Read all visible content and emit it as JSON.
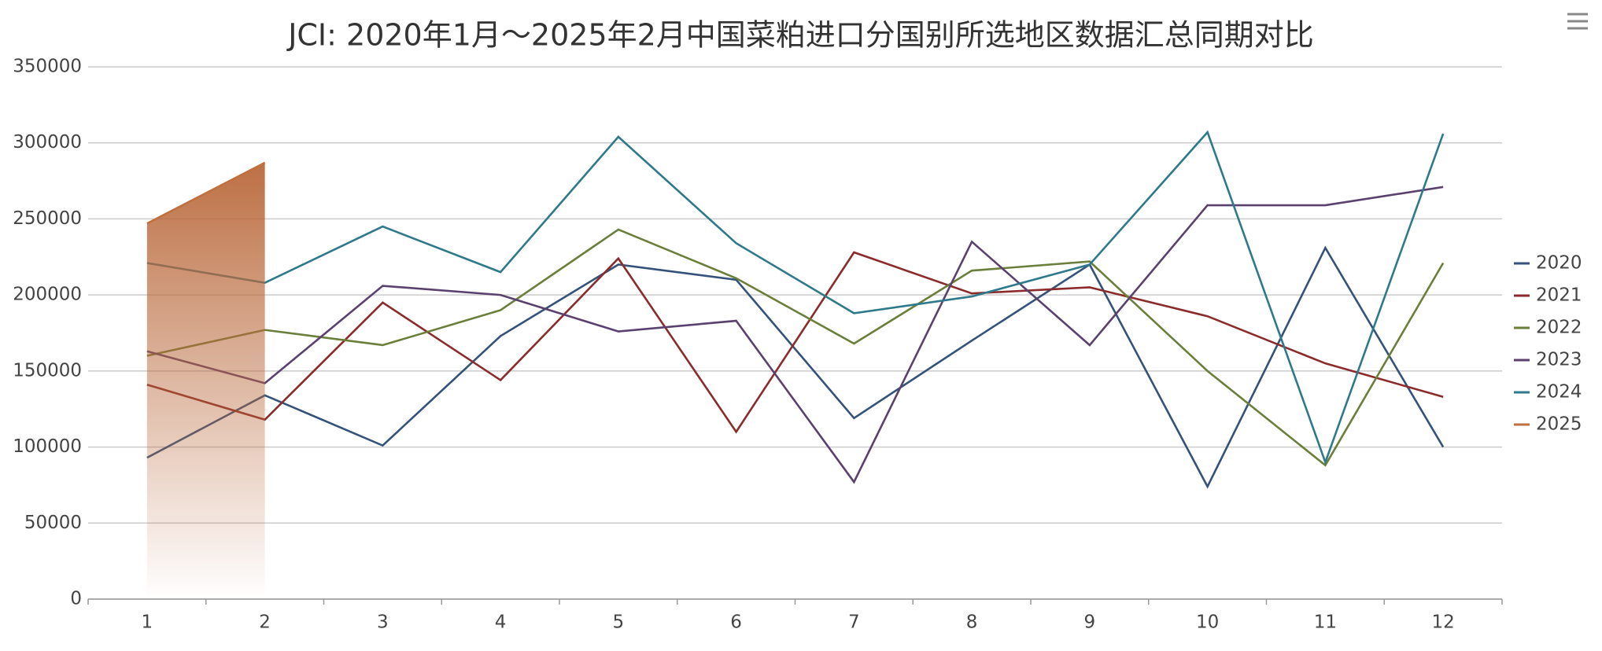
{
  "chart_data": {
    "type": "line",
    "title": "JCI: 2020年1月～2025年2月中国菜粕进口分国别所选地区数据汇总同期对比",
    "categories": [
      "1",
      "2",
      "3",
      "4",
      "5",
      "6",
      "7",
      "8",
      "9",
      "10",
      "11",
      "12"
    ],
    "ylim": [
      0,
      350000
    ],
    "yticks": [
      0,
      50000,
      100000,
      150000,
      200000,
      250000,
      300000,
      350000
    ],
    "grid": true,
    "legend": "right",
    "series": [
      {
        "name": "2020",
        "color": "#34527a",
        "values": [
          93000,
          134000,
          101000,
          173000,
          220000,
          210000,
          119000,
          170000,
          220000,
          74000,
          231000,
          100000
        ]
      },
      {
        "name": "2021",
        "color": "#8b2c2c",
        "values": [
          141000,
          118000,
          195000,
          144000,
          224000,
          110000,
          228000,
          201000,
          205000,
          186000,
          155000,
          133000
        ]
      },
      {
        "name": "2022",
        "color": "#6b7f3a",
        "values": [
          160000,
          177000,
          167000,
          190000,
          243000,
          211000,
          168000,
          216000,
          222000,
          150000,
          88000,
          221000
        ]
      },
      {
        "name": "2023",
        "color": "#5b426e",
        "values": [
          163000,
          142000,
          206000,
          200000,
          176000,
          183000,
          77000,
          235000,
          167000,
          259000,
          259000,
          271000
        ]
      },
      {
        "name": "2024",
        "color": "#2f7a8a",
        "values": [
          221000,
          208000,
          245000,
          215000,
          304000,
          234000,
          188000,
          199000,
          220000,
          307000,
          90000,
          306000
        ]
      },
      {
        "name": "2025",
        "color": "#c0703f",
        "values": [
          247000,
          287000,
          null,
          null,
          null,
          null,
          null,
          null,
          null,
          null,
          null,
          null
        ],
        "area": true
      }
    ]
  }
}
